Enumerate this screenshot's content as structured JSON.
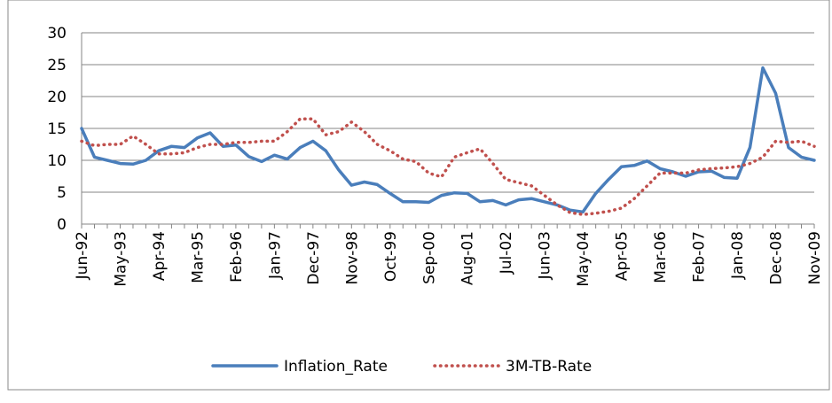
{
  "chart_data": {
    "type": "line",
    "categories": [
      "Jun-92",
      null,
      null,
      "May-93",
      null,
      null,
      "Apr-94",
      null,
      null,
      "Mar-95",
      null,
      null,
      "Feb-96",
      null,
      null,
      "Jan-97",
      null,
      null,
      "Dec-97",
      null,
      null,
      "Nov-98",
      null,
      null,
      "Oct-99",
      null,
      null,
      "Sep-00",
      null,
      null,
      "Aug-01",
      null,
      null,
      "Jul-02",
      null,
      null,
      "Jun-03",
      null,
      null,
      "May-04",
      null,
      null,
      "Apr-05",
      null,
      null,
      "Mar-06",
      null,
      null,
      "Feb-07",
      null,
      null,
      "Jan-08",
      null,
      null,
      "Dec-08",
      null,
      null,
      "Nov-09"
    ],
    "series": [
      {
        "name": "Inflation_Rate",
        "color": "#4a7ebb",
        "style": "solid",
        "values": [
          15,
          10.5,
          10,
          9.5,
          9.4,
          10,
          11.5,
          12.2,
          12,
          13.5,
          14.3,
          12.2,
          12.4,
          10.6,
          9.8,
          10.8,
          10.2,
          12,
          13,
          11.5,
          8.5,
          6.1,
          6.6,
          6.2,
          4.8,
          3.5,
          3.5,
          3.4,
          4.5,
          4.9,
          4.8,
          3.5,
          3.7,
          3,
          3.8,
          4,
          3.5,
          3,
          2.2,
          1.9,
          4.8,
          7,
          9,
          9.2,
          9.9,
          8.7,
          8.2,
          7.5,
          8.2,
          8.3,
          7.3,
          7.2,
          12,
          24.5,
          20.5,
          12,
          10.5,
          10
        ]
      },
      {
        "name": "3M-TB-Rate",
        "color": "#c0504d",
        "style": "dotted",
        "values": [
          13,
          12.3,
          12.5,
          12.5,
          13.8,
          12.5,
          11,
          11,
          11.2,
          12,
          12.5,
          12.5,
          12.8,
          12.8,
          13,
          13,
          14.5,
          16.5,
          16.5,
          14,
          14.5,
          16,
          14.5,
          12.5,
          11.5,
          10.2,
          9.8,
          8,
          7.4,
          10.5,
          11.2,
          11.8,
          9.5,
          7,
          6.5,
          6,
          4.5,
          3,
          1.8,
          1.5,
          1.7,
          2,
          2.5,
          4,
          6,
          8,
          8,
          8,
          8.5,
          8.7,
          8.8,
          9,
          9.5,
          10.5,
          13,
          12.8,
          13,
          12.2
        ]
      }
    ],
    "ylim": [
      0,
      30
    ],
    "yticks": [
      0,
      5,
      10,
      15,
      20,
      25,
      30
    ],
    "grid": true,
    "legend": "bottom"
  }
}
